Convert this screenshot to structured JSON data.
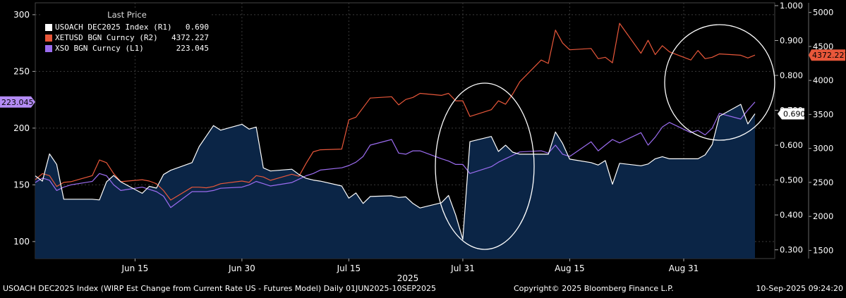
{
  "chart_data": {
    "type": "line",
    "legend_title": "Last Price",
    "legend_placement": "top-left",
    "grid": true,
    "x": {
      "year_label": "2025",
      "ticks": [
        "Jun 15",
        "Jun 30",
        "Jul 15",
        "Jul 31",
        "Aug 15",
        "Aug 31"
      ],
      "tick_dates": [
        "2025-06-15",
        "2025-06-30",
        "2025-07-15",
        "2025-07-31",
        "2025-08-15",
        "2025-08-31"
      ],
      "range": [
        "2025-06-01",
        "2025-09-10"
      ]
    },
    "axes": {
      "L1": {
        "ticks": [
          100,
          150,
          200,
          250,
          300
        ],
        "range": [
          85,
          308
        ]
      },
      "R1": {
        "ticks": [
          "0.300",
          "0.400",
          "0.500",
          "0.600",
          "0.700",
          "0.800",
          "0.900",
          "1.000"
        ],
        "range": [
          0.275,
          1.0
        ]
      },
      "R2": {
        "ticks": [
          1500,
          2000,
          2500,
          3000,
          3500,
          4000,
          4500,
          5000
        ],
        "range": [
          1380,
          5100
        ]
      }
    },
    "series": [
      {
        "name": "USOACH DEC2025 Index",
        "axis_label": "(R1)",
        "axis": "R1",
        "last": "0.690",
        "color": "#ffffff",
        "fill": "#0b2546",
        "values": [
          [
            "2025-06-01",
            0.512
          ],
          [
            "2025-06-02",
            0.497
          ],
          [
            "2025-06-03",
            0.575
          ],
          [
            "2025-06-04",
            0.545
          ],
          [
            "2025-06-05",
            0.445
          ],
          [
            "2025-06-06",
            0.445
          ],
          [
            "2025-06-09",
            0.445
          ],
          [
            "2025-06-10",
            0.443
          ],
          [
            "2025-06-11",
            0.495
          ],
          [
            "2025-06-12",
            0.513
          ],
          [
            "2025-06-13",
            0.495
          ],
          [
            "2025-06-16",
            0.462
          ],
          [
            "2025-06-17",
            0.482
          ],
          [
            "2025-06-18",
            0.477
          ],
          [
            "2025-06-19",
            0.516
          ],
          [
            "2025-06-20",
            0.528
          ],
          [
            "2025-06-23",
            0.55
          ],
          [
            "2025-06-24",
            0.596
          ],
          [
            "2025-06-25",
            0.626
          ],
          [
            "2025-06-26",
            0.656
          ],
          [
            "2025-06-27",
            0.643
          ],
          [
            "2025-06-30",
            0.66
          ],
          [
            "2025-07-01",
            0.646
          ],
          [
            "2025-07-02",
            0.652
          ],
          [
            "2025-07-03",
            0.535
          ],
          [
            "2025-07-04",
            0.526
          ],
          [
            "2025-07-07",
            0.531
          ],
          [
            "2025-07-08",
            0.516
          ],
          [
            "2025-07-09",
            0.505
          ],
          [
            "2025-07-10",
            0.5
          ],
          [
            "2025-07-11",
            0.497
          ],
          [
            "2025-07-14",
            0.483
          ],
          [
            "2025-07-15",
            0.448
          ],
          [
            "2025-07-16",
            0.463
          ],
          [
            "2025-07-17",
            0.433
          ],
          [
            "2025-07-18",
            0.453
          ],
          [
            "2025-07-21",
            0.455
          ],
          [
            "2025-07-22",
            0.45
          ],
          [
            "2025-07-23",
            0.452
          ],
          [
            "2025-07-24",
            0.433
          ],
          [
            "2025-07-25",
            0.42
          ],
          [
            "2025-07-28",
            0.435
          ],
          [
            "2025-07-29",
            0.456
          ],
          [
            "2025-07-30",
            0.4
          ],
          [
            "2025-07-31",
            0.33
          ],
          [
            "2025-08-01",
            0.61
          ],
          [
            "2025-08-04",
            0.625
          ],
          [
            "2025-08-05",
            0.582
          ],
          [
            "2025-08-06",
            0.6
          ],
          [
            "2025-08-07",
            0.58
          ],
          [
            "2025-08-08",
            0.574
          ],
          [
            "2025-08-11",
            0.574
          ],
          [
            "2025-08-12",
            0.574
          ],
          [
            "2025-08-13",
            0.638
          ],
          [
            "2025-08-14",
            0.605
          ],
          [
            "2025-08-15",
            0.56
          ],
          [
            "2025-08-18",
            0.55
          ],
          [
            "2025-08-19",
            0.543
          ],
          [
            "2025-08-20",
            0.556
          ],
          [
            "2025-08-21",
            0.488
          ],
          [
            "2025-08-22",
            0.548
          ],
          [
            "2025-08-25",
            0.541
          ],
          [
            "2025-08-26",
            0.546
          ],
          [
            "2025-08-27",
            0.561
          ],
          [
            "2025-08-28",
            0.567
          ],
          [
            "2025-08-29",
            0.561
          ],
          [
            "2025-09-01",
            0.561
          ],
          [
            "2025-09-02",
            0.561
          ],
          [
            "2025-09-03",
            0.572
          ],
          [
            "2025-09-04",
            0.602
          ],
          [
            "2025-09-05",
            0.683
          ],
          [
            "2025-09-08",
            0.717
          ],
          [
            "2025-09-09",
            0.661
          ],
          [
            "2025-09-10",
            0.69
          ]
        ]
      },
      {
        "name": "XETUSD BGN Curncy",
        "axis_label": "(R2)",
        "axis": "R2",
        "last": "4372.227",
        "color": "#e8573a",
        "values": [
          [
            "2025-06-01",
            2540
          ],
          [
            "2025-06-02",
            2630
          ],
          [
            "2025-06-03",
            2600
          ],
          [
            "2025-06-04",
            2440
          ],
          [
            "2025-06-05",
            2500
          ],
          [
            "2025-06-06",
            2510
          ],
          [
            "2025-06-09",
            2600
          ],
          [
            "2025-06-10",
            2830
          ],
          [
            "2025-06-11",
            2790
          ],
          [
            "2025-06-12",
            2630
          ],
          [
            "2025-06-13",
            2510
          ],
          [
            "2025-06-16",
            2540
          ],
          [
            "2025-06-17",
            2520
          ],
          [
            "2025-06-18",
            2480
          ],
          [
            "2025-06-19",
            2380
          ],
          [
            "2025-06-20",
            2240
          ],
          [
            "2025-06-23",
            2430
          ],
          [
            "2025-06-24",
            2430
          ],
          [
            "2025-06-25",
            2420
          ],
          [
            "2025-06-26",
            2440
          ],
          [
            "2025-06-27",
            2480
          ],
          [
            "2025-06-30",
            2520
          ],
          [
            "2025-07-01",
            2500
          ],
          [
            "2025-07-02",
            2600
          ],
          [
            "2025-07-03",
            2580
          ],
          [
            "2025-07-04",
            2530
          ],
          [
            "2025-07-07",
            2620
          ],
          [
            "2025-07-08",
            2590
          ],
          [
            "2025-07-09",
            2780
          ],
          [
            "2025-07-10",
            2950
          ],
          [
            "2025-07-11",
            2980
          ],
          [
            "2025-07-14",
            2990
          ],
          [
            "2025-07-15",
            3420
          ],
          [
            "2025-07-16",
            3460
          ],
          [
            "2025-07-17",
            3600
          ],
          [
            "2025-07-18",
            3740
          ],
          [
            "2025-07-21",
            3760
          ],
          [
            "2025-07-22",
            3640
          ],
          [
            "2025-07-23",
            3720
          ],
          [
            "2025-07-24",
            3750
          ],
          [
            "2025-07-25",
            3810
          ],
          [
            "2025-07-28",
            3780
          ],
          [
            "2025-07-29",
            3810
          ],
          [
            "2025-07-30",
            3700
          ],
          [
            "2025-07-31",
            3700
          ],
          [
            "2025-08-01",
            3470
          ],
          [
            "2025-08-04",
            3570
          ],
          [
            "2025-08-05",
            3700
          ],
          [
            "2025-08-06",
            3650
          ],
          [
            "2025-08-07",
            3800
          ],
          [
            "2025-08-08",
            3980
          ],
          [
            "2025-08-11",
            4300
          ],
          [
            "2025-08-12",
            4250
          ],
          [
            "2025-08-13",
            4740
          ],
          [
            "2025-08-14",
            4550
          ],
          [
            "2025-08-15",
            4450
          ],
          [
            "2025-08-18",
            4470
          ],
          [
            "2025-08-19",
            4320
          ],
          [
            "2025-08-20",
            4340
          ],
          [
            "2025-08-21",
            4260
          ],
          [
            "2025-08-22",
            4840
          ],
          [
            "2025-08-25",
            4400
          ],
          [
            "2025-08-26",
            4590
          ],
          [
            "2025-08-27",
            4380
          ],
          [
            "2025-08-28",
            4510
          ],
          [
            "2025-08-29",
            4420
          ],
          [
            "2025-09-01",
            4300
          ],
          [
            "2025-09-02",
            4440
          ],
          [
            "2025-09-03",
            4320
          ],
          [
            "2025-09-04",
            4340
          ],
          [
            "2025-09-05",
            4390
          ],
          [
            "2025-09-08",
            4370
          ],
          [
            "2025-09-09",
            4330
          ],
          [
            "2025-09-10",
            4372.227
          ]
        ]
      },
      {
        "name": "XSO BGN Curncy",
        "axis_label": "(L1)",
        "axis": "L1",
        "last": "223.045",
        "color": "#9b6cf0",
        "values": [
          [
            "2025-06-01",
            152
          ],
          [
            "2025-06-02",
            156
          ],
          [
            "2025-06-03",
            154
          ],
          [
            "2025-06-04",
            145
          ],
          [
            "2025-06-05",
            148
          ],
          [
            "2025-06-06",
            150
          ],
          [
            "2025-06-09",
            153
          ],
          [
            "2025-06-10",
            160
          ],
          [
            "2025-06-11",
            158
          ],
          [
            "2025-06-12",
            150
          ],
          [
            "2025-06-13",
            145
          ],
          [
            "2025-06-16",
            148
          ],
          [
            "2025-06-17",
            146
          ],
          [
            "2025-06-18",
            144
          ],
          [
            "2025-06-19",
            140
          ],
          [
            "2025-06-20",
            130
          ],
          [
            "2025-06-23",
            144
          ],
          [
            "2025-06-24",
            144
          ],
          [
            "2025-06-25",
            144
          ],
          [
            "2025-06-26",
            145
          ],
          [
            "2025-06-27",
            147
          ],
          [
            "2025-06-30",
            148
          ],
          [
            "2025-07-01",
            150
          ],
          [
            "2025-07-02",
            153
          ],
          [
            "2025-07-03",
            151
          ],
          [
            "2025-07-04",
            149
          ],
          [
            "2025-07-07",
            152
          ],
          [
            "2025-07-08",
            155
          ],
          [
            "2025-07-09",
            158
          ],
          [
            "2025-07-10",
            160
          ],
          [
            "2025-07-11",
            163
          ],
          [
            "2025-07-14",
            165
          ],
          [
            "2025-07-15",
            167
          ],
          [
            "2025-07-16",
            170
          ],
          [
            "2025-07-17",
            175
          ],
          [
            "2025-07-18",
            185
          ],
          [
            "2025-07-21",
            190
          ],
          [
            "2025-07-22",
            178
          ],
          [
            "2025-07-23",
            177
          ],
          [
            "2025-07-24",
            180
          ],
          [
            "2025-07-25",
            180
          ],
          [
            "2025-07-28",
            173
          ],
          [
            "2025-07-29",
            171
          ],
          [
            "2025-07-30",
            168
          ],
          [
            "2025-07-31",
            168
          ],
          [
            "2025-08-01",
            160
          ],
          [
            "2025-08-04",
            166
          ],
          [
            "2025-08-05",
            170
          ],
          [
            "2025-08-06",
            173
          ],
          [
            "2025-08-07",
            176
          ],
          [
            "2025-08-08",
            179
          ],
          [
            "2025-08-11",
            180
          ],
          [
            "2025-08-12",
            178
          ],
          [
            "2025-08-13",
            185
          ],
          [
            "2025-08-14",
            177
          ],
          [
            "2025-08-15",
            175
          ],
          [
            "2025-08-18",
            188
          ],
          [
            "2025-08-19",
            180
          ],
          [
            "2025-08-20",
            185
          ],
          [
            "2025-08-21",
            190
          ],
          [
            "2025-08-22",
            187
          ],
          [
            "2025-08-25",
            196
          ],
          [
            "2025-08-26",
            185
          ],
          [
            "2025-08-27",
            192
          ],
          [
            "2025-08-28",
            201
          ],
          [
            "2025-08-29",
            205
          ],
          [
            "2025-09-01",
            196
          ],
          [
            "2025-09-02",
            198
          ],
          [
            "2025-09-03",
            194
          ],
          [
            "2025-09-04",
            200
          ],
          [
            "2025-09-05",
            213
          ],
          [
            "2025-09-08",
            208
          ],
          [
            "2025-09-09",
            216
          ],
          [
            "2025-09-10",
            223.045
          ]
        ]
      }
    ],
    "annotations": [
      {
        "type": "ellipse",
        "color": "#ffffff",
        "around": [
          "2025-07-31",
          "2025-08-07"
        ]
      },
      {
        "type": "ellipse",
        "color": "#ffffff",
        "around": [
          "2025-09-01",
          "2025-09-09"
        ]
      }
    ]
  },
  "footer": {
    "left": "USOACH DEC2025 Index (WIRP Est Change from Current Rate US - Futures Model)  Daily 01JUN2025-10SEP2025",
    "mid": "Copyright© 2025 Bloomberg Finance L.P.",
    "right": "10-Sep-2025 09:24:20"
  }
}
